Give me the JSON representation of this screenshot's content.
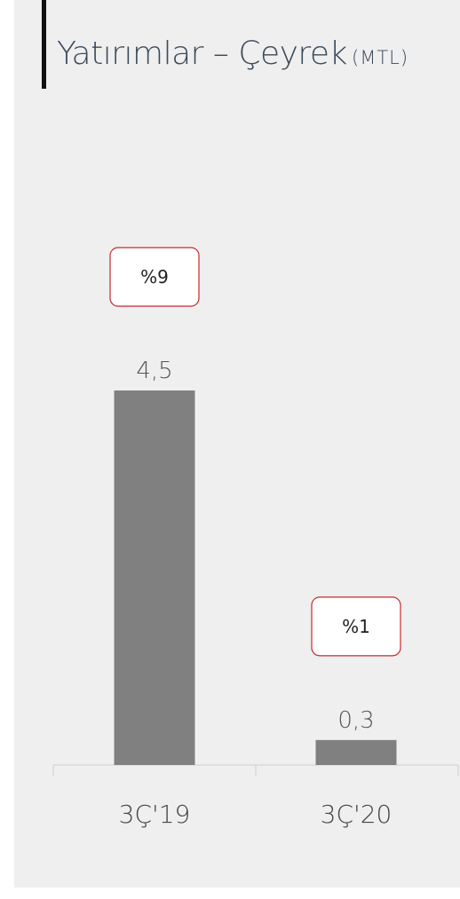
{
  "title": {
    "main": "Yatırımlar – Çeyrek",
    "unit": "(MTL)"
  },
  "colors": {
    "bar": "#808080",
    "badge_border": "#c8282d",
    "badge_fill": "#ffffff",
    "axis": "#cfcfcf"
  },
  "chart_data": {
    "type": "bar",
    "categories": [
      "3Ç'19",
      "3Ç'20"
    ],
    "values": [
      4.5,
      0.3
    ],
    "value_labels": [
      "4,5",
      "0,3"
    ],
    "share_labels": [
      "%9",
      "%1"
    ],
    "title": "Yatırımlar – Çeyrek",
    "unit": "(MTL)",
    "ylim": [
      0,
      4.5
    ],
    "grid": false,
    "legend": "none"
  }
}
